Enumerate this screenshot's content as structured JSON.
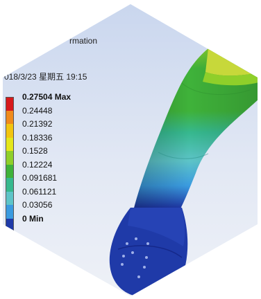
{
  "header": {
    "type_fragment": "rmation",
    "date_time": "018/3/23 星期五 19:15"
  },
  "legend": {
    "max_label": "0.27504 Max",
    "min_label": "0 Min",
    "levels": [
      {
        "label": "0.27504 Max",
        "color": "#d7191c",
        "bold": true
      },
      {
        "label": "0.24448",
        "color": "#f08a1c",
        "bold": false
      },
      {
        "label": "0.21392",
        "color": "#f2c40f",
        "bold": false
      },
      {
        "label": "0.18336",
        "color": "#e4e61a",
        "bold": false
      },
      {
        "label": "0.1528",
        "color": "#8fcf2a",
        "bold": false
      },
      {
        "label": "0.12224",
        "color": "#3fb23a",
        "bold": false
      },
      {
        "label": "0.091681",
        "color": "#36b88e",
        "bold": false
      },
      {
        "label": "0.061121",
        "color": "#5dc4c8",
        "bold": false
      },
      {
        "label": "0.03056",
        "color": "#3a9be0",
        "bold": false
      },
      {
        "label": "0 Min",
        "color": "#1f3aa8",
        "bold": true
      }
    ]
  },
  "colors": {
    "background_top": "#c9d6ee",
    "background_bottom": "#eef1f7",
    "min_blue": "#1f3aa8",
    "max_red": "#d7191c"
  },
  "icons": {
    "model": "deformed-part-icon"
  }
}
